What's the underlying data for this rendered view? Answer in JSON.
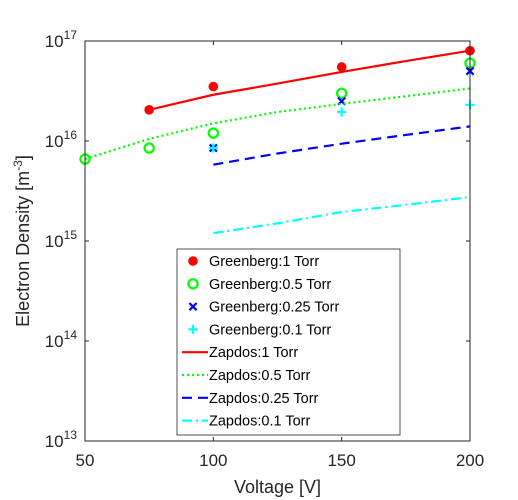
{
  "chart_data": {
    "type": "scatter",
    "xlabel": "Voltage [V]",
    "ylabel_main": "Electron Density [m",
    "ylabel_sup": "-3",
    "ylabel_close": "]",
    "xlim": [
      50,
      200
    ],
    "ylim": [
      10000000000000.0,
      1e+17
    ],
    "yscale": "log",
    "grid": false,
    "legend_position": "inside-bottom-right",
    "x_ticks": [
      {
        "value": 50,
        "label": "50"
      },
      {
        "value": 100,
        "label": "100"
      },
      {
        "value": 150,
        "label": "150"
      },
      {
        "value": 200,
        "label": "200"
      }
    ],
    "y_ticks": [
      {
        "value": 10000000000000.0,
        "base": "10",
        "exp": "13"
      },
      {
        "value": 100000000000000.0,
        "base": "10",
        "exp": "14"
      },
      {
        "value": 1000000000000000.0,
        "base": "10",
        "exp": "15"
      },
      {
        "value": 1e+16,
        "base": "10",
        "exp": "16"
      },
      {
        "value": 1e+17,
        "base": "10",
        "exp": "17"
      }
    ],
    "series": [
      {
        "name": "Greenberg:1 Torr",
        "kind": "marker",
        "marker": "dot",
        "color": "#ff0000",
        "x": [
          75,
          100,
          150,
          200
        ],
        "y": [
          2.05e+16,
          3.5e+16,
          5.5e+16,
          8e+16
        ]
      },
      {
        "name": "Greenberg:0.5 Torr",
        "kind": "marker",
        "marker": "circle",
        "color": "#00ff00",
        "x": [
          50,
          75,
          100,
          150,
          200
        ],
        "y": [
          6600000000000000.0,
          8500000000000000.0,
          1.2e+16,
          3e+16,
          6e+16
        ]
      },
      {
        "name": "Greenberg:0.25 Torr",
        "kind": "marker",
        "marker": "x",
        "color": "#0000ff",
        "x": [
          100,
          150,
          200
        ],
        "y": [
          8500000000000000.0,
          2.5e+16,
          5e+16
        ]
      },
      {
        "name": "Greenberg:0.1 Torr",
        "kind": "marker",
        "marker": "plus",
        "color": "#00ffff",
        "x": [
          100,
          150,
          200
        ],
        "y": [
          8500000000000000.0,
          1.95e+16,
          2.3e+16
        ]
      },
      {
        "name": "Zapdos:1 Torr",
        "kind": "line",
        "dash": "solid",
        "color": "#ff0000",
        "x": [
          75,
          100,
          125,
          150,
          175,
          200
        ],
        "y": [
          2.05e+16,
          2.9e+16,
          3.75e+16,
          4.9e+16,
          6.3e+16,
          8e+16
        ]
      },
      {
        "name": "Zapdos:0.5 Torr",
        "kind": "line",
        "dash": "dotted",
        "color": "#00ff00",
        "x": [
          50,
          75,
          100,
          125,
          150,
          175,
          200
        ],
        "y": [
          6600000000000000.0,
          1.05e+16,
          1.5e+16,
          1.95e+16,
          2.35e+16,
          2.8e+16,
          3.35e+16
        ]
      },
      {
        "name": "Zapdos:0.25 Torr",
        "kind": "line",
        "dash": "dashed",
        "color": "#0000ff",
        "x": [
          100,
          125,
          150,
          175,
          200
        ],
        "y": [
          5800000000000000.0,
          7500000000000000.0,
          9400000000000000.0,
          1.15e+16,
          1.4e+16
        ]
      },
      {
        "name": "Zapdos:0.1 Torr",
        "kind": "line",
        "dash": "dashdot",
        "color": "#00ffff",
        "x": [
          100,
          125,
          150,
          175,
          200
        ],
        "y": [
          1200000000000000.0,
          1500000000000000.0,
          1950000000000000.0,
          2300000000000000.0,
          2750000000000000.0
        ]
      }
    ]
  }
}
